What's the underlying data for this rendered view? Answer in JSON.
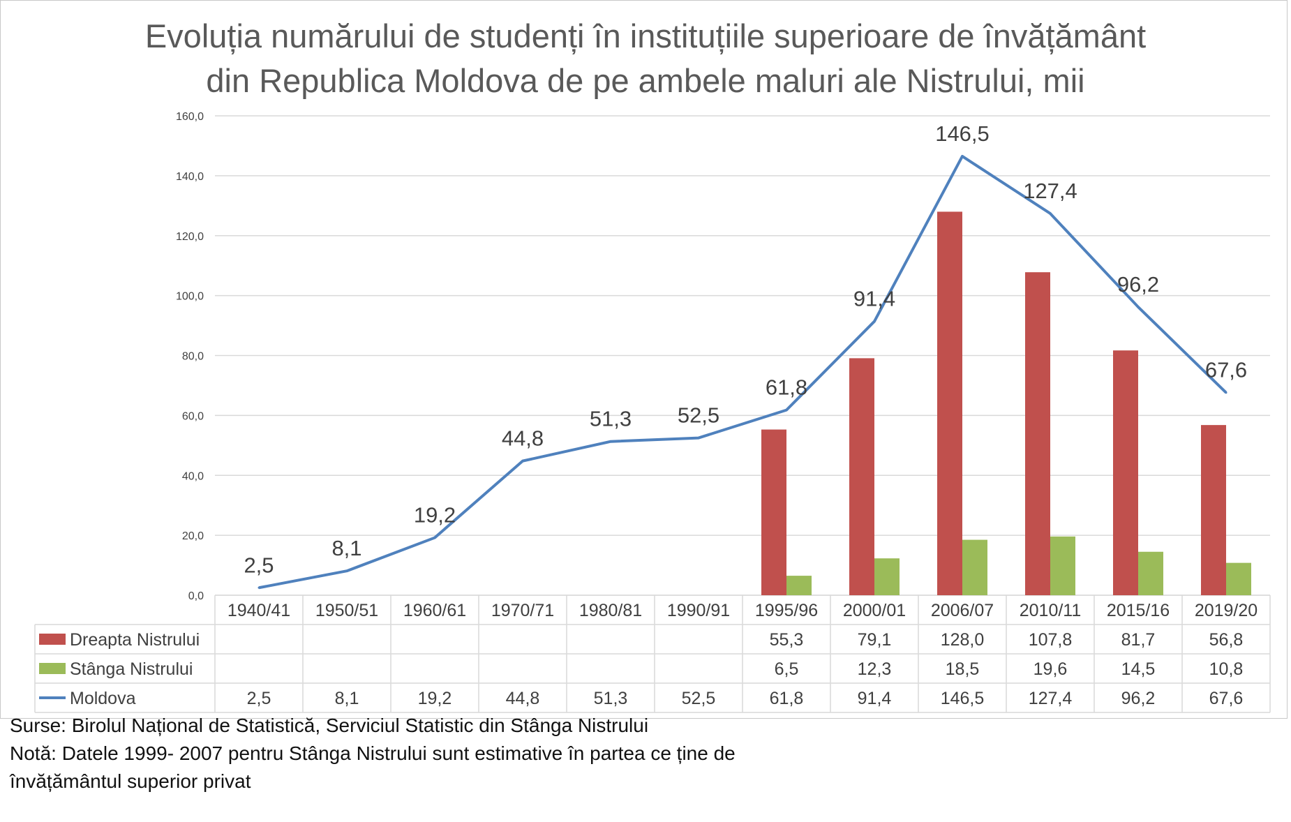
{
  "colors": {
    "dreapta": "#C0504D",
    "stanga": "#9BBB59",
    "moldova": "#4F81BD",
    "grid": "#D9D9D9",
    "text": "#404040"
  },
  "chart_data": {
    "type": "bar",
    "title_lines": [
      "Evoluția numărului de studenți în instituțiile superioare de învățământ",
      "din Republica Moldova de pe ambele maluri ale Nistrului, mii"
    ],
    "categories": [
      "1940/41",
      "1950/51",
      "1960/61",
      "1970/71",
      "1980/81",
      "1990/91",
      "1995/96",
      "2000/01",
      "2006/07",
      "2010/11",
      "2015/16",
      "2019/20"
    ],
    "ylim": [
      0,
      160
    ],
    "y_ticks": [
      "0,0",
      "20,0",
      "40,0",
      "60,0",
      "80,0",
      "100,0",
      "120,0",
      "140,0",
      "160,0"
    ],
    "grid": true,
    "series": [
      {
        "name": "Dreapta Nistrului",
        "kind": "bar",
        "values": [
          null,
          null,
          null,
          null,
          null,
          null,
          55.3,
          79.1,
          128.0,
          107.8,
          81.7,
          56.8
        ],
        "labels": [
          "",
          "",
          "",
          "",
          "",
          "",
          "55,3",
          "79,1",
          "128,0",
          "107,8",
          "81,7",
          "56,8"
        ]
      },
      {
        "name": "Stânga Nistrului",
        "kind": "bar",
        "values": [
          null,
          null,
          null,
          null,
          null,
          null,
          6.5,
          12.3,
          18.5,
          19.6,
          14.5,
          10.8
        ],
        "labels": [
          "",
          "",
          "",
          "",
          "",
          "",
          "6,5",
          "12,3",
          "18,5",
          "19,6",
          "14,5",
          "10,8"
        ]
      },
      {
        "name": "Moldova",
        "kind": "line",
        "values": [
          2.5,
          8.1,
          19.2,
          44.8,
          51.3,
          52.5,
          61.8,
          91.4,
          146.5,
          127.4,
          96.2,
          67.6
        ],
        "labels": [
          "2,5",
          "8,1",
          "19,2",
          "44,8",
          "51,3",
          "52,5",
          "61,8",
          "91,4",
          "146,5",
          "127,4",
          "96,2",
          "67,6"
        ]
      }
    ],
    "legend": "data-table",
    "notes": [
      "Surse: Birolul Național de Statistică, Serviciul Statistic din Stânga Nistrului",
      "Notă: Datele 1999- 2007 pentru Stânga Nistrului sunt estimative în partea ce ține de",
      "învățământul superior privat"
    ]
  }
}
